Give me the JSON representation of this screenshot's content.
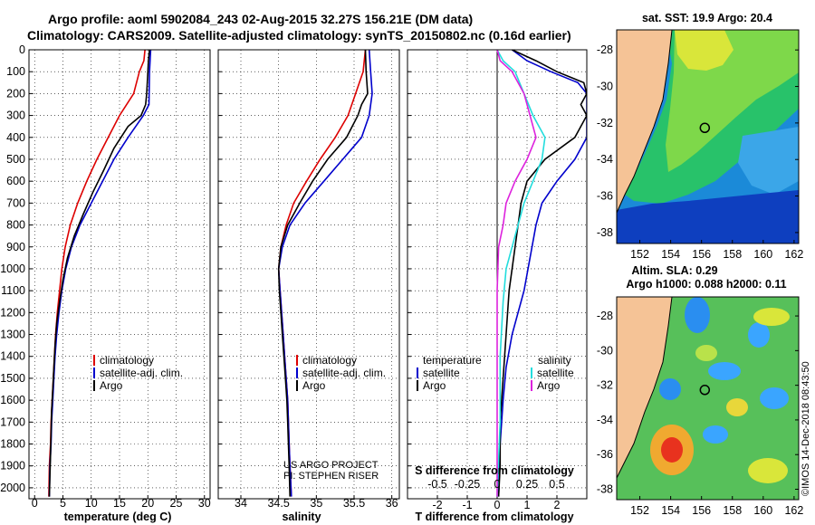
{
  "title": {
    "line1": "Argo profile: aoml 5902084_243 02-Aug-2015 32.27S 156.21E (DM data)",
    "line2": "Climatology: CARS2009. Satellite-adjusted climatology: synTS_20150802.nc (0.16d earlier)"
  },
  "colors": {
    "climatology": "#dd0000",
    "satellite": "#0000cc",
    "argo": "#000000",
    "sal_satellite": "#22dddd",
    "sal_argo": "#dd22dd",
    "land": "#f5c396"
  },
  "chart_data": [
    {
      "type": "line",
      "id": "temperature",
      "xlabel": "temperature (deg C)",
      "xlim": [
        -1,
        31
      ],
      "ylim": [
        0,
        2050
      ],
      "xticks": [
        "0",
        "5",
        "10",
        "15",
        "20",
        "25",
        "30"
      ],
      "xtick_values": [
        0,
        5,
        10,
        15,
        20,
        25,
        30
      ],
      "yticks": [
        "0",
        "100",
        "200",
        "300",
        "400",
        "500",
        "600",
        "700",
        "800",
        "900",
        "1000",
        "1100",
        "1200",
        "1300",
        "1400",
        "1500",
        "1600",
        "1700",
        "1800",
        "1900",
        "2000"
      ],
      "grid": true,
      "legend": [
        "climatology",
        "satellite-adj. clim.",
        "Argo"
      ],
      "series": [
        {
          "name": "climatology",
          "color": "#dd0000",
          "points": [
            [
              19.5,
              0
            ],
            [
              19.3,
              50
            ],
            [
              18.5,
              100
            ],
            [
              17.5,
              200
            ],
            [
              15,
              300
            ],
            [
              13,
              400
            ],
            [
              11,
              500
            ],
            [
              9.2,
              600
            ],
            [
              7.6,
              700
            ],
            [
              6.3,
              800
            ],
            [
              5.4,
              900
            ],
            [
              4.8,
              1000
            ],
            [
              4.4,
              1100
            ],
            [
              4.0,
              1200
            ],
            [
              3.7,
              1300
            ],
            [
              3.5,
              1400
            ],
            [
              3.3,
              1500
            ],
            [
              3.1,
              1600
            ],
            [
              2.9,
              1700
            ],
            [
              2.8,
              1800
            ],
            [
              2.6,
              1900
            ],
            [
              2.5,
              2040
            ]
          ]
        },
        {
          "name": "satellite-adj. clim.",
          "color": "#0000cc",
          "points": [
            [
              20.5,
              0
            ],
            [
              20.3,
              100
            ],
            [
              20.2,
              250
            ],
            [
              19.2,
              300
            ],
            [
              16.5,
              400
            ],
            [
              14,
              500
            ],
            [
              12,
              600
            ],
            [
              10,
              700
            ],
            [
              8,
              800
            ],
            [
              6.5,
              900
            ],
            [
              5.5,
              1000
            ],
            [
              4.8,
              1100
            ],
            [
              4.3,
              1200
            ],
            [
              3.9,
              1300
            ],
            [
              3.6,
              1400
            ],
            [
              3.4,
              1500
            ],
            [
              3.2,
              1600
            ],
            [
              3.0,
              1700
            ],
            [
              2.9,
              1800
            ],
            [
              2.7,
              1900
            ],
            [
              2.6,
              2040
            ]
          ]
        },
        {
          "name": "Argo",
          "color": "#000000",
          "points": [
            [
              20.3,
              0
            ],
            [
              20.1,
              50
            ],
            [
              20.0,
              100
            ],
            [
              19.8,
              200
            ],
            [
              19.6,
              250
            ],
            [
              18.8,
              300
            ],
            [
              16.5,
              350
            ],
            [
              14,
              450
            ],
            [
              12.2,
              550
            ],
            [
              10.3,
              650
            ],
            [
              8.6,
              750
            ],
            [
              7,
              850
            ],
            [
              5.8,
              950
            ],
            [
              5,
              1050
            ],
            [
              4.4,
              1150
            ],
            [
              3.9,
              1250
            ],
            [
              3.6,
              1350
            ],
            [
              3.4,
              1450
            ],
            [
              3.2,
              1550
            ],
            [
              3.0,
              1650
            ],
            [
              2.9,
              1750
            ],
            [
              2.8,
              1850
            ],
            [
              2.7,
              1950
            ],
            [
              2.6,
              2040
            ]
          ]
        }
      ]
    },
    {
      "type": "line",
      "id": "salinity",
      "xlabel": "salinity",
      "xlim": [
        33.7,
        36.1
      ],
      "ylim": [
        0,
        2050
      ],
      "xticks": [
        "34",
        "34.5",
        "35",
        "35.5",
        "36"
      ],
      "xtick_values": [
        34,
        34.5,
        35,
        35.5,
        36
      ],
      "grid": true,
      "legend": [
        "climatology",
        "satellite-adj. clim.",
        "Argo"
      ],
      "annotation": [
        "US ARGO PROJECT",
        "PI: STEPHEN RISER"
      ],
      "series": [
        {
          "name": "climatology",
          "color": "#dd0000",
          "points": [
            [
              35.65,
              0
            ],
            [
              35.62,
              100
            ],
            [
              35.52,
              200
            ],
            [
              35.42,
              300
            ],
            [
              35.25,
              400
            ],
            [
              35.05,
              500
            ],
            [
              34.87,
              600
            ],
            [
              34.7,
              700
            ],
            [
              34.6,
              800
            ],
            [
              34.53,
              900
            ],
            [
              34.5,
              1000
            ],
            [
              34.52,
              1100
            ],
            [
              34.54,
              1200
            ],
            [
              34.56,
              1300
            ],
            [
              34.58,
              1400
            ],
            [
              34.6,
              1500
            ],
            [
              34.62,
              1600
            ],
            [
              34.63,
              1700
            ],
            [
              34.64,
              1800
            ],
            [
              34.65,
              1900
            ],
            [
              34.67,
              2040
            ]
          ]
        },
        {
          "name": "satellite-adj. clim.",
          "color": "#0000cc",
          "points": [
            [
              35.7,
              0
            ],
            [
              35.72,
              100
            ],
            [
              35.74,
              200
            ],
            [
              35.7,
              300
            ],
            [
              35.6,
              400
            ],
            [
              35.35,
              500
            ],
            [
              35.1,
              600
            ],
            [
              34.85,
              700
            ],
            [
              34.65,
              800
            ],
            [
              34.55,
              900
            ],
            [
              34.5,
              1000
            ],
            [
              34.52,
              1100
            ],
            [
              34.54,
              1200
            ],
            [
              34.56,
              1300
            ],
            [
              34.58,
              1400
            ],
            [
              34.6,
              1500
            ],
            [
              34.62,
              1600
            ],
            [
              34.63,
              1700
            ],
            [
              34.64,
              1800
            ],
            [
              34.65,
              1900
            ],
            [
              34.67,
              2040
            ]
          ]
        },
        {
          "name": "Argo",
          "color": "#000000",
          "points": [
            [
              35.65,
              0
            ],
            [
              35.66,
              100
            ],
            [
              35.68,
              200
            ],
            [
              35.6,
              250
            ],
            [
              35.55,
              300
            ],
            [
              35.4,
              400
            ],
            [
              35.15,
              500
            ],
            [
              34.95,
              600
            ],
            [
              34.78,
              700
            ],
            [
              34.62,
              800
            ],
            [
              34.53,
              900
            ],
            [
              34.5,
              1000
            ],
            [
              34.51,
              1100
            ],
            [
              34.53,
              1200
            ],
            [
              34.55,
              1300
            ],
            [
              34.57,
              1400
            ],
            [
              34.59,
              1500
            ],
            [
              34.61,
              1600
            ],
            [
              34.62,
              1700
            ],
            [
              34.63,
              1800
            ],
            [
              34.64,
              1900
            ],
            [
              34.65,
              2040
            ]
          ]
        }
      ]
    },
    {
      "type": "line",
      "id": "difference",
      "xlabel": "T difference from climatology",
      "x2label": "S difference from climatology",
      "xlim": [
        -3,
        3
      ],
      "ylim": [
        0,
        2050
      ],
      "xticks": [
        "-2",
        "-1",
        "0",
        "1",
        "2"
      ],
      "xtick_values": [
        -2,
        -1,
        0,
        1,
        2
      ],
      "x2ticks": [
        "-0.5",
        "-0.25",
        "0",
        "0.25",
        "0.5"
      ],
      "x2tick_values": [
        -2,
        -1,
        0,
        1,
        2
      ],
      "grid": true,
      "legend_t": [
        "temperature",
        "satellite",
        "Argo"
      ],
      "legend_s": [
        "salinity",
        "satellite",
        "Argo"
      ],
      "series": [
        {
          "name": "T satellite",
          "color": "#0000cc",
          "points": [
            [
              0.5,
              0
            ],
            [
              1,
              50
            ],
            [
              1.8,
              100
            ],
            [
              2.7,
              150
            ],
            [
              3,
              200
            ],
            [
              3,
              400
            ],
            [
              2.6,
              500
            ],
            [
              2,
              600
            ],
            [
              1.5,
              700
            ],
            [
              1.3,
              800
            ],
            [
              1.1,
              950
            ],
            [
              0.9,
              1100
            ],
            [
              0.5,
              1300
            ],
            [
              0.3,
              1450
            ],
            [
              0.2,
              1600
            ],
            [
              0.1,
              1800
            ],
            [
              0.05,
              2040
            ]
          ]
        },
        {
          "name": "T Argo",
          "color": "#000000",
          "points": [
            [
              0.5,
              0
            ],
            [
              1.3,
              50
            ],
            [
              2,
              100
            ],
            [
              2.9,
              150
            ],
            [
              3,
              200
            ],
            [
              2.8,
              250
            ],
            [
              3,
              300
            ],
            [
              2.6,
              400
            ],
            [
              1.6,
              500
            ],
            [
              1,
              600
            ],
            [
              0.8,
              700
            ],
            [
              0.7,
              800
            ],
            [
              0.6,
              900
            ],
            [
              0.5,
              1000
            ],
            [
              0.4,
              1100
            ],
            [
              0.3,
              1300
            ],
            [
              0.2,
              1500
            ],
            [
              0.1,
              1700
            ],
            [
              0.1,
              1900
            ],
            [
              0.05,
              2040
            ]
          ]
        },
        {
          "name": "S satellite",
          "color": "#22dddd",
          "points": [
            [
              0,
              0
            ],
            [
              0.2,
              50
            ],
            [
              0.6,
              100
            ],
            [
              0.9,
              200
            ],
            [
              1.2,
              300
            ],
            [
              1.6,
              400
            ],
            [
              1.5,
              500
            ],
            [
              1.2,
              600
            ],
            [
              0.9,
              700
            ],
            [
              0.7,
              800
            ],
            [
              0.5,
              900
            ],
            [
              0.3,
              1000
            ],
            [
              0.2,
              1150
            ],
            [
              0.1,
              1400
            ],
            [
              0.1,
              1700
            ],
            [
              0,
              2040
            ]
          ]
        },
        {
          "name": "S Argo",
          "color": "#dd22dd",
          "points": [
            [
              0,
              0
            ],
            [
              0.1,
              50
            ],
            [
              0.5,
              100
            ],
            [
              0.9,
              200
            ],
            [
              1.1,
              300
            ],
            [
              1.3,
              400
            ],
            [
              1.0,
              500
            ],
            [
              0.6,
              600
            ],
            [
              0.3,
              700
            ],
            [
              0.2,
              800
            ],
            [
              0.05,
              900
            ],
            [
              0,
              1100
            ],
            [
              0,
              1400
            ],
            [
              0,
              1700
            ],
            [
              0,
              2040
            ]
          ]
        }
      ]
    },
    {
      "type": "heatmap",
      "id": "sst_map",
      "title": "sat. SST: 19.9 Argo: 20.4",
      "xticks": [
        "152",
        "154",
        "156",
        "158",
        "160",
        "162"
      ],
      "xtick_values": [
        152,
        154,
        156,
        158,
        160,
        162
      ],
      "yticks": [
        "-28",
        "-30",
        "-32",
        "-34",
        "-36",
        "-38"
      ],
      "ytick_values": [
        -28,
        -30,
        -32,
        -34,
        -36,
        -38
      ],
      "xlim": [
        150.5,
        162.3
      ],
      "ylim": [
        -38.6,
        -26.9
      ],
      "argo_position": [
        156.21,
        -32.27
      ]
    },
    {
      "type": "heatmap",
      "id": "sla_map",
      "title": "Altim. SLA: 0.29",
      "subtitle": "Argo h1000: 0.088 h2000: 0.11",
      "xticks": [
        "152",
        "154",
        "156",
        "158",
        "160",
        "162"
      ],
      "xtick_values": [
        152,
        154,
        156,
        158,
        160,
        162
      ],
      "yticks": [
        "-28",
        "-30",
        "-32",
        "-34",
        "-36",
        "-38"
      ],
      "ytick_values": [
        -28,
        -30,
        -32,
        -34,
        -36,
        -38
      ],
      "xlim": [
        150.5,
        162.3
      ],
      "ylim": [
        -38.6,
        -26.9
      ],
      "argo_position": [
        156.21,
        -32.27
      ]
    }
  ],
  "credit": "©IMOS 14-Dec-2018 08:43:50"
}
